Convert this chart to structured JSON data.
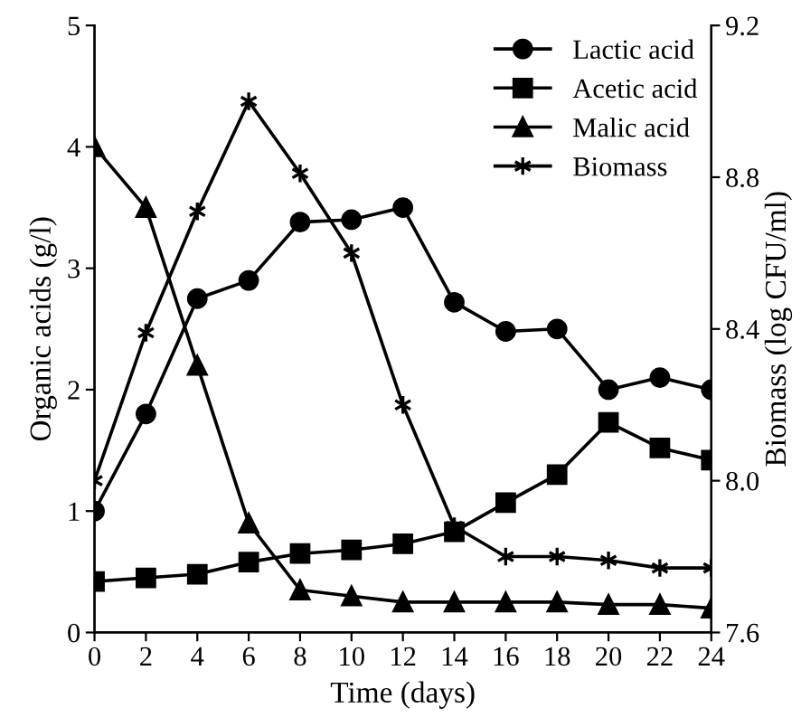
{
  "chart_data": {
    "type": "line",
    "xlabel": "Time (days)",
    "ylabel": "Organic acids (g/l)",
    "y2label": "Biomass (log CFU/ml)",
    "x": [
      0,
      2,
      4,
      6,
      8,
      10,
      12,
      14,
      16,
      18,
      20,
      22,
      24
    ],
    "xlim": [
      0,
      24
    ],
    "xticks": [
      0,
      2,
      4,
      6,
      8,
      10,
      12,
      14,
      16,
      18,
      20,
      22,
      24
    ],
    "ylim": [
      0,
      5
    ],
    "yticks": [
      0,
      1,
      2,
      3,
      4,
      5
    ],
    "y2lim": [
      7.6,
      9.2
    ],
    "y2ticks": [
      {
        "value": 7.6,
        "label": "7.6"
      },
      {
        "value": 8.0,
        "label": "8.0"
      },
      {
        "value": 8.4,
        "label": "8.4"
      },
      {
        "value": 8.8,
        "label": "8.8"
      },
      {
        "value": 9.2,
        "label": "9.2"
      }
    ],
    "grid": false,
    "legend": "top right",
    "series": [
      {
        "name": "Lactic acid",
        "color": "#000000",
        "marker": "circle",
        "values": [
          1.0,
          1.8,
          2.75,
          2.9,
          3.38,
          3.4,
          3.5,
          2.72,
          2.48,
          2.5,
          2.0,
          2.1,
          2.0
        ]
      },
      {
        "name": "Acetic acid",
        "color": "#000000",
        "marker": "square",
        "values": [
          0.42,
          0.45,
          0.48,
          0.58,
          0.65,
          0.68,
          0.73,
          0.83,
          1.07,
          1.3,
          1.73,
          1.52,
          1.42
        ]
      },
      {
        "name": "Malic acid",
        "color": "#000000",
        "marker": "triangle",
        "values": [
          4.0,
          3.5,
          2.2,
          0.9,
          0.35,
          0.3,
          0.25,
          0.25,
          0.25,
          0.25,
          0.23,
          0.23,
          0.2
        ]
      },
      {
        "name": "Biomass",
        "color": "#000000",
        "marker": "cross",
        "axis": "y2",
        "values": [
          8.0,
          8.39,
          8.71,
          9.0,
          8.81,
          8.6,
          8.2,
          7.88,
          7.8,
          7.8,
          7.79,
          7.77,
          7.77
        ]
      }
    ]
  }
}
